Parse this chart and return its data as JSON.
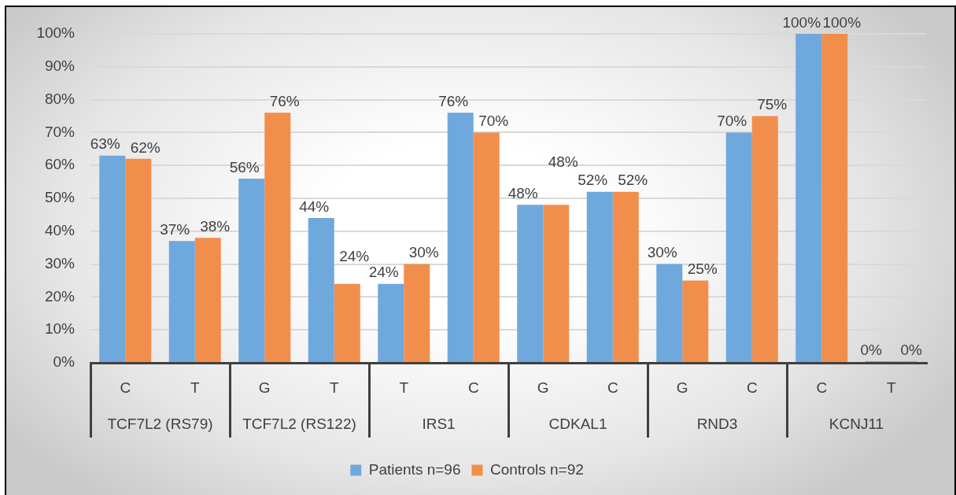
{
  "chart_data": {
    "type": "bar",
    "categories": [
      "C",
      "T",
      "G",
      "T",
      "T",
      "C",
      "G",
      "C",
      "G",
      "C",
      "C",
      "T"
    ],
    "series": [
      {
        "name": "Patients n=96",
        "color": "#6fa8dc",
        "values": [
          63,
          37,
          56,
          44,
          24,
          76,
          48,
          52,
          30,
          70,
          100,
          0
        ],
        "value_labels": [
          "63%",
          "37%",
          "56%",
          "44%",
          "24%",
          "76%",
          "48%",
          "52%",
          "30%",
          "70%",
          "100%",
          "0%"
        ]
      },
      {
        "name": "Controls n=92",
        "color": "#f28e4b",
        "values": [
          62,
          38,
          76,
          24,
          30,
          70,
          48,
          52,
          25,
          75,
          100,
          0
        ],
        "value_labels": [
          "62%",
          "38%",
          "76%",
          "24%",
          "30%",
          "70%",
          "48%",
          "52%",
          "25%",
          "75%",
          "100%",
          "0%"
        ]
      }
    ],
    "ylim": [
      0,
      100
    ],
    "yticks": [
      {
        "value": 0,
        "label": "0%"
      },
      {
        "value": 10,
        "label": "10%"
      },
      {
        "value": 20,
        "label": "20%"
      },
      {
        "value": 30,
        "label": "30%"
      },
      {
        "value": 40,
        "label": "40%"
      },
      {
        "value": 50,
        "label": "50%"
      },
      {
        "value": 60,
        "label": "60%"
      },
      {
        "value": 70,
        "label": "70%"
      },
      {
        "value": 80,
        "label": "80%"
      },
      {
        "value": 90,
        "label": "90%"
      },
      {
        "value": 100,
        "label": "100%"
      }
    ],
    "grid": "y",
    "legend": "bottom",
    "annotations": [
      "TCF7L2 (RS79)",
      "TCF7L2 (RS122)",
      "IRS1",
      "CDKAL1",
      "RND3",
      "KCNJ11"
    ]
  }
}
